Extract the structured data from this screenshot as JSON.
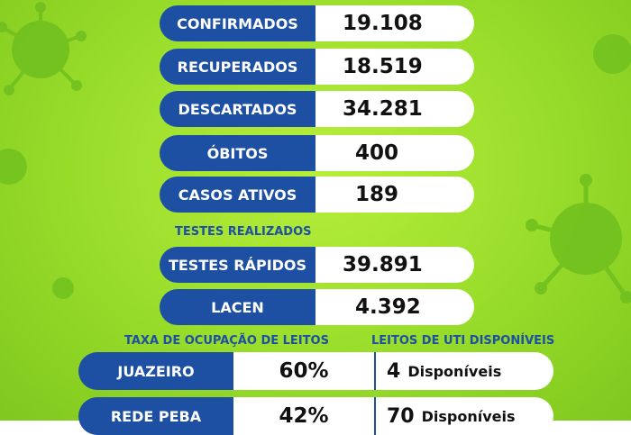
{
  "stats": [
    {
      "label": "CONFIRMADOS",
      "value": "19.108"
    },
    {
      "label": "RECUPERADOS",
      "value": "18.519"
    },
    {
      "label": "DESCARTADOS",
      "value": "34.281"
    },
    {
      "label": "ÓBITOS",
      "value": "400"
    },
    {
      "label": "CASOS ATIVOS",
      "value": "189"
    }
  ],
  "tests_title": "TESTES REALIZADOS",
  "tests": [
    {
      "label": "TESTES RÁPIDOS",
      "value": "39.891"
    },
    {
      "label": "LACEN",
      "value": "4.392"
    }
  ],
  "beds": {
    "occupancy_title": "TAXA DE OCUPAÇÃO DE LEITOS",
    "icu_title": "LEITOS DE UTI DISPONÍVEIS",
    "rows": [
      {
        "label": "JUAZEIRO",
        "rate": "60%",
        "count": "4",
        "unit": "Disponíveis"
      },
      {
        "label": "REDE PEBA",
        "rate": "42%",
        "count": "70",
        "unit": "Disponíveis"
      }
    ]
  },
  "colors": {
    "accent": "#1d4fa3",
    "background": "#98dc2a"
  }
}
